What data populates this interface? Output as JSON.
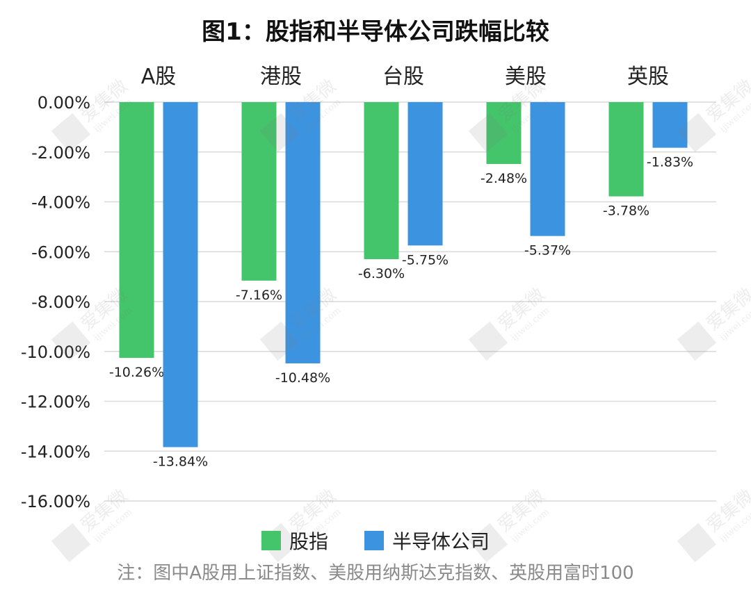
{
  "chart_data": {
    "type": "bar",
    "title": "图1：股指和半导体公司跌幅比较",
    "categories": [
      "A股",
      "港股",
      "台股",
      "美股",
      "英股"
    ],
    "series": [
      {
        "name": "股指",
        "values": [
          -10.26,
          -7.16,
          -6.3,
          -2.48,
          -3.78
        ],
        "labels": [
          "-10.26%",
          "-7.16%",
          "-6.30%",
          "-2.48%",
          "-3.78%"
        ]
      },
      {
        "name": "半导体公司",
        "values": [
          -13.84,
          -10.48,
          -5.75,
          -5.37,
          -1.83
        ],
        "labels": [
          "-13.84%",
          "-10.48%",
          "-5.75%",
          "-5.37%",
          "-1.83%"
        ]
      }
    ],
    "ylim": [
      -16,
      0
    ],
    "yticks": [
      0,
      -2,
      -4,
      -6,
      -8,
      -10,
      -12,
      -14,
      -16
    ],
    "ytick_labels": [
      "0.00%",
      "-2.00%",
      "-4.00%",
      "-6.00%",
      "-8.00%",
      "-10.00%",
      "-12.00%",
      "-14.00%",
      "-16.00%"
    ],
    "xlabel": "",
    "ylabel": "",
    "legend_position": "bottom",
    "grid": true,
    "colors": {
      "股指": "#44c46b",
      "半导体公司": "#3c94e0"
    }
  },
  "legend": {
    "items": [
      "股指",
      "半导体公司"
    ]
  },
  "note": "注：图中A股用上证指数、美股用纳斯达克指数、英股用富时100",
  "watermark": {
    "brand": "爱集微",
    "url": "ijiwei.com"
  }
}
